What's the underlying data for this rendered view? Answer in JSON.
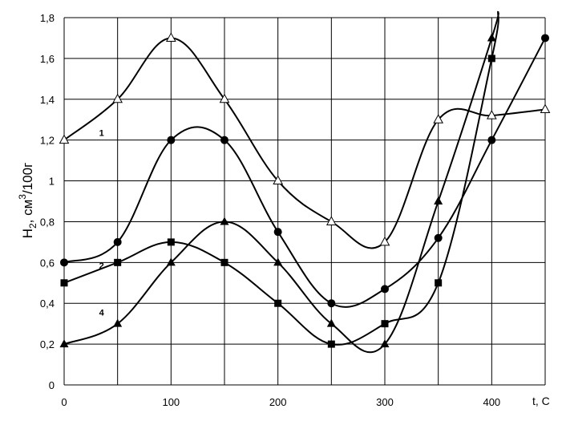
{
  "chart_data": {
    "type": "line",
    "title": "",
    "xlabel": "t, C",
    "ylabel_parts": {
      "main": "H",
      "sub": "2",
      "unit_pre": ", см",
      "sup": "3",
      "unit_post": "/100г"
    },
    "xlim": [
      0,
      450
    ],
    "ylim": [
      0,
      1.8
    ],
    "x_ticks": [
      "0",
      "100",
      "200",
      "300",
      "400"
    ],
    "y_ticks": [
      "0",
      "0,2",
      "0,4",
      "0,6",
      "0,8",
      "1",
      "1,2",
      "1,4",
      "1,6",
      "1,8"
    ],
    "grid": true,
    "series": [
      {
        "name": "1",
        "marker": "triangle-open",
        "x": [
          0,
          50,
          100,
          150,
          200,
          250,
          300,
          350,
          400,
          450
        ],
        "y": [
          1.2,
          1.4,
          1.7,
          1.4,
          1.0,
          0.8,
          0.7,
          1.3,
          1.32,
          1.35
        ]
      },
      {
        "name": "",
        "marker": "circle",
        "x": [
          0,
          50,
          100,
          150,
          200,
          250,
          300,
          350,
          400,
          450
        ],
        "y": [
          0.6,
          0.7,
          1.2,
          1.2,
          0.75,
          0.4,
          0.47,
          0.72,
          1.2,
          1.7
        ]
      },
      {
        "name": "2",
        "marker": "square",
        "x": [
          0,
          50,
          100,
          150,
          200,
          250,
          300,
          350,
          400
        ],
        "y": [
          0.5,
          0.6,
          0.7,
          0.6,
          0.4,
          0.2,
          0.3,
          0.5,
          1.6
        ]
      },
      {
        "name": "4",
        "marker": "triangle",
        "x": [
          0,
          50,
          100,
          150,
          200,
          250,
          300,
          350,
          400
        ],
        "y": [
          0.2,
          0.3,
          0.6,
          0.8,
          0.6,
          0.3,
          0.2,
          0.9,
          1.7
        ]
      }
    ],
    "curve_labels": [
      {
        "text": "1",
        "x": 35,
        "y": 1.22
      },
      {
        "text": "2",
        "x": 35,
        "y": 0.57
      },
      {
        "text": "4",
        "x": 35,
        "y": 0.34
      }
    ]
  }
}
